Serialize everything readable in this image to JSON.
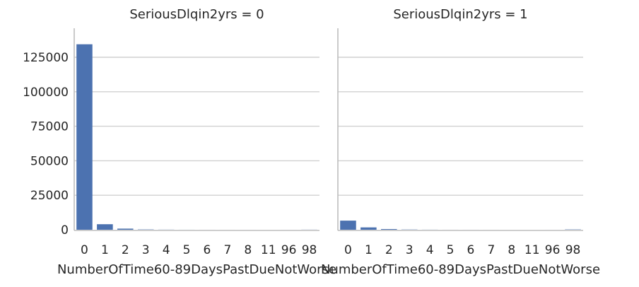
{
  "chart_data": [
    {
      "type": "bar",
      "title": "SeriousDlqin2yrs = 0",
      "xlabel": "NumberOfTime60-89DaysPastDueNotWorse",
      "ylabel": "",
      "categories": [
        "0",
        "1",
        "2",
        "3",
        "4",
        "5",
        "6",
        "7",
        "8",
        "11",
        "96",
        "98"
      ],
      "values": [
        134400,
        4000,
        800,
        200,
        70,
        20,
        10,
        5,
        2,
        1,
        3,
        60
      ],
      "ylim": [
        0,
        146000
      ],
      "yticks": [
        0,
        25000,
        50000,
        75000,
        100000,
        125000
      ],
      "grid": true,
      "bar_color": "#4c72b0"
    },
    {
      "type": "bar",
      "title": "SeriousDlqin2yrs = 1",
      "xlabel": "NumberOfTime60-89DaysPastDueNotWorse",
      "ylabel": "",
      "categories": [
        "0",
        "1",
        "2",
        "3",
        "4",
        "5",
        "6",
        "7",
        "8",
        "11",
        "96",
        "98"
      ],
      "values": [
        6600,
        1700,
        500,
        150,
        50,
        15,
        8,
        4,
        1,
        1,
        2,
        200
      ],
      "ylim": [
        0,
        146000
      ],
      "yticks": [
        0,
        25000,
        50000,
        75000,
        100000,
        125000
      ],
      "grid": true,
      "bar_color": "#4c72b0"
    }
  ]
}
